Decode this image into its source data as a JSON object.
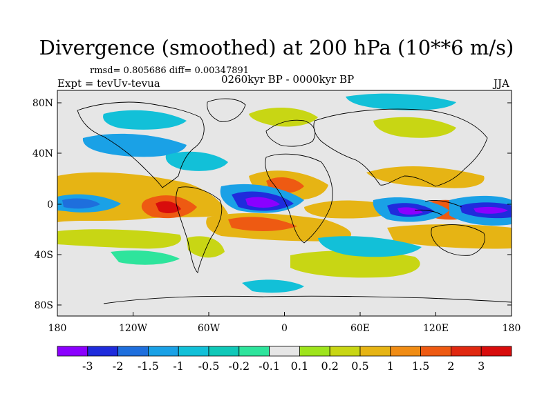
{
  "title": "Divergence (smoothed) at 200 hPa (10**6 m/s)",
  "stats": "rmsd= 0.805686  diff= 0.00347891",
  "experiment": "Expt = tevUv-tevua",
  "period": "0260kyr BP - 0000kyr BP",
  "season": "JJA",
  "axes": {
    "x_ticks": [
      "180",
      "120W",
      "60W",
      "0",
      "60E",
      "120E",
      "180"
    ],
    "y_ticks": [
      "80N",
      "40N",
      "0",
      "40S",
      "80S"
    ]
  },
  "colorbar": {
    "labels": [
      "-3",
      "-2",
      "-1.5",
      "-1",
      "-0.5",
      "-0.2",
      "-0.1",
      "0.1",
      "0.2",
      "0.5",
      "1",
      "1.5",
      "2",
      "3"
    ],
    "colors": [
      "#8b00ff",
      "#1f2cdc",
      "#1e6fdd",
      "#1aa1e6",
      "#12c0d8",
      "#10c8b8",
      "#2ee49c",
      "#e6e6e6",
      "#9ee41c",
      "#c8d614",
      "#e6b414",
      "#f08c14",
      "#ee5a12",
      "#e02810",
      "#d80c0c"
    ]
  }
}
